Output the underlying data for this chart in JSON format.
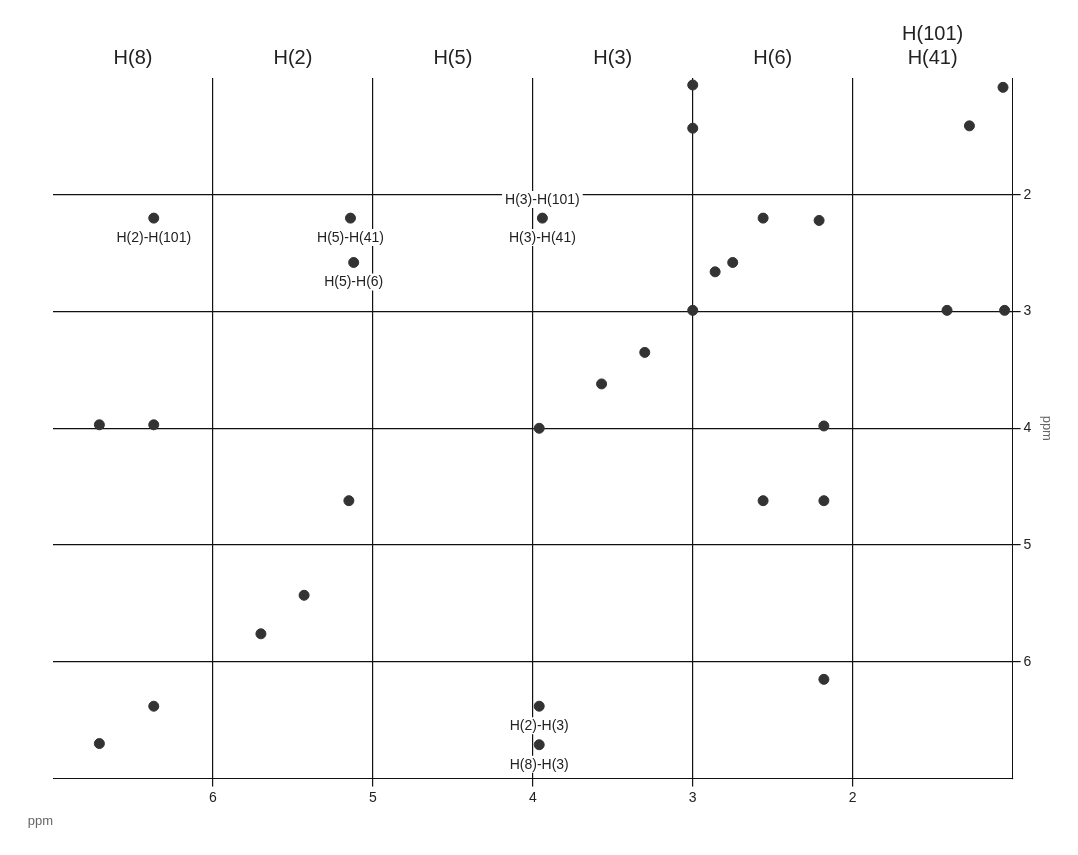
{
  "chart_data": {
    "type": "scatter",
    "xlabel": "ppm",
    "ylabel": "ppm",
    "xlim": [
      7,
      1
    ],
    "xticks": [
      6,
      5,
      4,
      3,
      2
    ],
    "ylim": [
      7,
      1
    ],
    "yticks": [
      2,
      3,
      4,
      5,
      6
    ],
    "grid": true,
    "marker": "circle",
    "legend": false,
    "series": [
      {
        "color": "#333333",
        "x": [
          3.0,
          3.0,
          1.27,
          1.06,
          6.37,
          5.14,
          3.94,
          2.21,
          2.56,
          5.12,
          2.75,
          2.86,
          3.0,
          1.41,
          1.05,
          6.71,
          6.37,
          3.96,
          2.18,
          5.15,
          2.56,
          2.18,
          2.18,
          6.37,
          6.71,
          3.96,
          3.96,
          3.57,
          3.3,
          5.43,
          5.7
        ],
        "values": [
          1.06,
          1.43,
          1.41,
          1.08,
          2.2,
          2.2,
          2.2,
          2.22,
          2.2,
          2.58,
          2.58,
          2.66,
          2.99,
          2.99,
          2.99,
          3.97,
          3.97,
          4.0,
          3.98,
          4.62,
          4.62,
          4.62,
          6.15,
          6.38,
          6.7,
          6.38,
          6.71,
          3.62,
          3.35,
          5.43,
          5.76
        ]
      }
    ],
    "annotations": [
      "H(8)",
      "H(2)",
      "H(5)",
      "H(3)",
      "H(6)",
      "H(101)\nH(41)",
      {
        "text": "H(2)-H(101)",
        "x": 6.37,
        "y": 2.2
      },
      {
        "text": "H(5)-H(41)",
        "x": 5.14,
        "y": 2.2
      },
      {
        "text": "H(3)-H(101)",
        "x": 3.94,
        "y": 2.2
      },
      {
        "text": "H(3)-H(41)",
        "x": 3.94,
        "y": 2.2
      },
      {
        "text": "H(5)-H(6)",
        "x": 5.12,
        "y": 2.58
      },
      {
        "text": "H(2)-H(3)",
        "x": 3.96,
        "y": 6.38
      },
      {
        "text": "H(8)-H(3)",
        "x": 3.96,
        "y": 6.71
      }
    ]
  }
}
